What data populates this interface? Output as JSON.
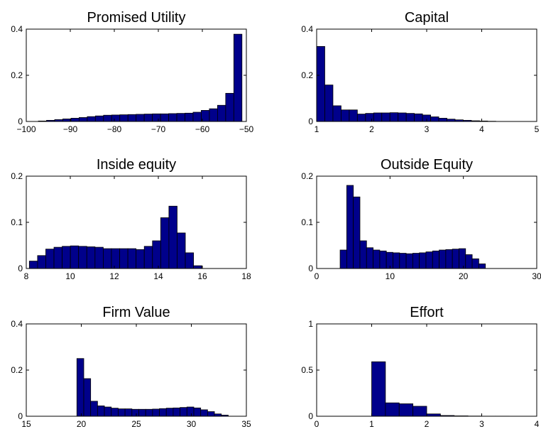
{
  "colors": {
    "bar_fill": "#00008B",
    "bar_stroke": "#000000",
    "axes": "#000000",
    "background": "#ffffff"
  },
  "chart_data": [
    {
      "type": "bar",
      "title": "Promised Utility",
      "xlim": [
        -100,
        -50
      ],
      "ylim": [
        0,
        0.4
      ],
      "xticks": [
        -100,
        -90,
        -80,
        -70,
        -60,
        -50
      ],
      "xtick_labels": [
        "−100",
        "−90",
        "−80",
        "−70",
        "−60",
        "−50"
      ],
      "yticks": [
        0,
        0.2,
        0.4
      ],
      "ytick_labels": [
        "0",
        "0.2",
        "0.4"
      ],
      "bin_start": -97.25,
      "bin_width": 1.85,
      "values": [
        0.002,
        0.005,
        0.008,
        0.011,
        0.014,
        0.017,
        0.021,
        0.024,
        0.027,
        0.028,
        0.029,
        0.03,
        0.031,
        0.032,
        0.033,
        0.033,
        0.034,
        0.035,
        0.036,
        0.04,
        0.048,
        0.055,
        0.07,
        0.122,
        0.378
      ]
    },
    {
      "type": "bar",
      "title": "Capital",
      "xlim": [
        1,
        5
      ],
      "ylim": [
        0,
        0.4
      ],
      "xticks": [
        1,
        2,
        3,
        4,
        5
      ],
      "xtick_labels": [
        "1",
        "2",
        "3",
        "4",
        "5"
      ],
      "yticks": [
        0,
        0.2,
        0.4
      ],
      "ytick_labels": [
        "0",
        "0.2",
        "0.4"
      ],
      "bin_start": 1.0,
      "bin_width": 0.148,
      "values": [
        0.325,
        0.158,
        0.068,
        0.05,
        0.05,
        0.032,
        0.035,
        0.037,
        0.037,
        0.038,
        0.037,
        0.035,
        0.033,
        0.028,
        0.02,
        0.014,
        0.01,
        0.007,
        0.005,
        0.003,
        0.002,
        0.001,
        0.0,
        0.0,
        0.0
      ]
    },
    {
      "type": "bar",
      "title": "Inside equity",
      "xlim": [
        8,
        18
      ],
      "ylim": [
        0,
        0.2
      ],
      "xticks": [
        8,
        10,
        12,
        14,
        16,
        18
      ],
      "xtick_labels": [
        "8",
        "10",
        "12",
        "14",
        "16",
        "18"
      ],
      "yticks": [
        0,
        0.1,
        0.2
      ],
      "ytick_labels": [
        "0",
        "0.1",
        "0.2"
      ],
      "bin_start": 8.14,
      "bin_width": 0.373,
      "values": [
        0.016,
        0.028,
        0.042,
        0.046,
        0.048,
        0.049,
        0.048,
        0.047,
        0.046,
        0.043,
        0.043,
        0.043,
        0.043,
        0.041,
        0.048,
        0.06,
        0.11,
        0.135,
        0.077,
        0.034,
        0.006
      ]
    },
    {
      "type": "bar",
      "title": "Outside Equity",
      "xlim": [
        0,
        30
      ],
      "ylim": [
        0,
        0.2
      ],
      "xticks": [
        0,
        10,
        20,
        30
      ],
      "xtick_labels": [
        "0",
        "10",
        "20",
        "30"
      ],
      "yticks": [
        0,
        0.1,
        0.2
      ],
      "ytick_labels": [
        "0",
        "0.1",
        "0.2"
      ],
      "bin_start": 3.2,
      "bin_width": 0.9,
      "values": [
        0.04,
        0.18,
        0.155,
        0.06,
        0.045,
        0.04,
        0.038,
        0.035,
        0.034,
        0.033,
        0.032,
        0.033,
        0.034,
        0.036,
        0.038,
        0.04,
        0.041,
        0.042,
        0.043,
        0.03,
        0.021,
        0.01
      ]
    },
    {
      "type": "bar",
      "title": "Firm Value",
      "xlim": [
        15,
        35
      ],
      "ylim": [
        0,
        0.4
      ],
      "xticks": [
        15,
        20,
        25,
        30,
        35
      ],
      "xtick_labels": [
        "15",
        "20",
        "25",
        "30",
        "35"
      ],
      "yticks": [
        0,
        0.2,
        0.4
      ],
      "ytick_labels": [
        "0",
        "0.2",
        "0.4"
      ],
      "bin_start": 19.6,
      "bin_width": 0.625,
      "values": [
        0.25,
        0.163,
        0.065,
        0.045,
        0.04,
        0.035,
        0.032,
        0.032,
        0.03,
        0.03,
        0.03,
        0.031,
        0.033,
        0.035,
        0.036,
        0.038,
        0.04,
        0.036,
        0.028,
        0.02,
        0.01,
        0.005
      ]
    },
    {
      "type": "bar",
      "title": "Effort",
      "xlim": [
        0,
        4
      ],
      "ylim": [
        0,
        1
      ],
      "xticks": [
        0,
        1,
        2,
        3,
        4
      ],
      "xtick_labels": [
        "0",
        "1",
        "2",
        "3",
        "4"
      ],
      "yticks": [
        0,
        0.5,
        1
      ],
      "ytick_labels": [
        "0",
        "0.5",
        "1"
      ],
      "bin_start": 1.0,
      "bin_width": 0.25,
      "values": [
        0.59,
        0.145,
        0.135,
        0.108,
        0.025,
        0.008,
        0.004,
        0.002,
        0.001,
        0.001,
        0.0
      ]
    }
  ]
}
